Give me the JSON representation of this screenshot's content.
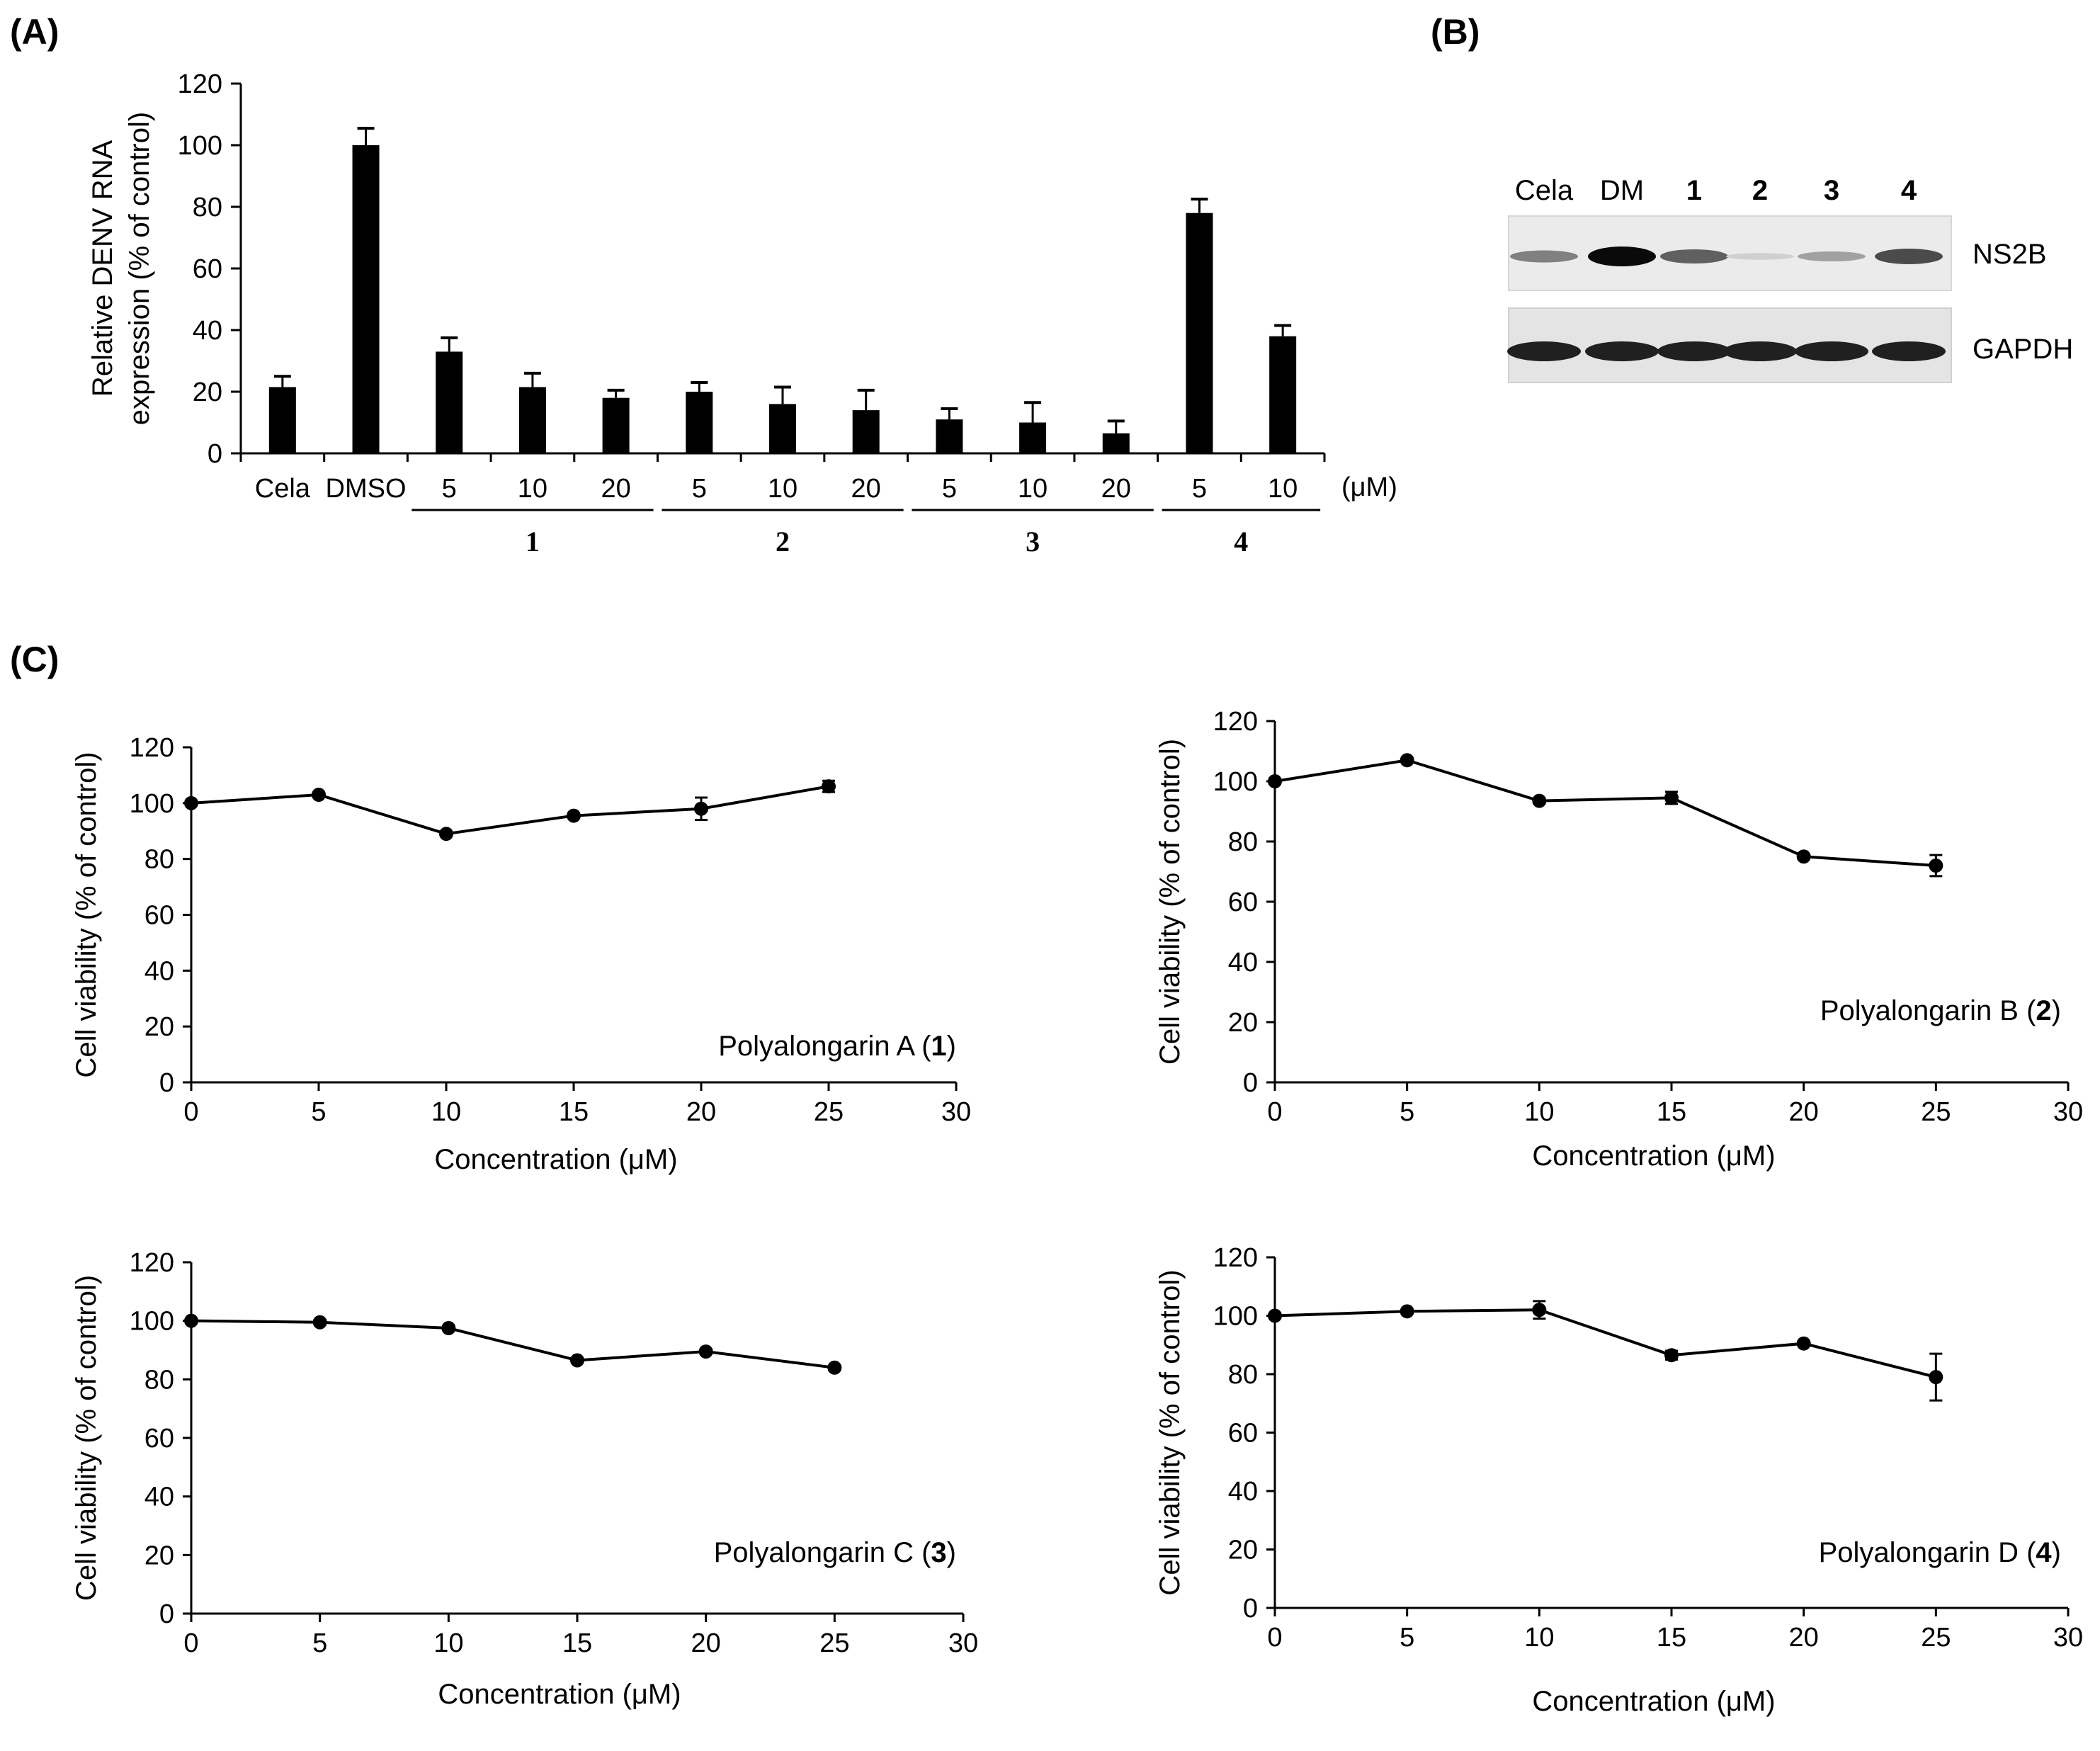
{
  "panels": {
    "A": "(A)",
    "B": "(B)",
    "C": "(C)"
  },
  "chart_data": [
    {
      "panel": "A",
      "type": "bar",
      "ylabel_line1": "Relative DENV RNA",
      "ylabel_line2": "expression (% of control)",
      "ylim": [
        0,
        120
      ],
      "yticks": [
        0,
        20,
        40,
        60,
        80,
        100,
        120
      ],
      "unit_label": "(μM)",
      "categories": [
        "Cela",
        "DMSO",
        "5",
        "10",
        "20",
        "5",
        "10",
        "20",
        "5",
        "10",
        "20",
        "5",
        "10"
      ],
      "values": [
        21.5,
        100,
        33,
        21.5,
        18,
        20,
        16,
        14,
        11,
        10,
        6.5,
        78,
        38
      ],
      "errors": [
        3.5,
        5.5,
        4.5,
        4.5,
        2.5,
        3,
        5.5,
        6.5,
        3.5,
        6.5,
        4,
        4.5,
        3.5
      ],
      "groups": [
        {
          "label": "1",
          "members": [
            2,
            3,
            4
          ]
        },
        {
          "label": "2",
          "members": [
            5,
            6,
            7
          ]
        },
        {
          "label": "3",
          "members": [
            8,
            9,
            10
          ]
        },
        {
          "label": "4",
          "members": [
            11,
            12
          ]
        }
      ],
      "bar_color": "#000000"
    },
    {
      "panel": "C1",
      "type": "line",
      "series_label": "Polyalongarin A (",
      "series_label_bold": "1",
      "series_label_end": ")",
      "xlabel": "Concentration (μM)",
      "ylabel": "Cell viability (% of control)",
      "xlim": [
        0,
        30
      ],
      "ylim": [
        0,
        120
      ],
      "xticks": [
        0,
        5,
        10,
        15,
        20,
        25,
        30
      ],
      "yticks": [
        0,
        20,
        40,
        60,
        80,
        100,
        120
      ],
      "x": [
        0,
        5,
        10,
        15,
        20,
        25
      ],
      "y": [
        100,
        103,
        89,
        95.5,
        98,
        106
      ],
      "err": [
        0.8,
        0.8,
        0.8,
        0.8,
        4,
        2
      ]
    },
    {
      "panel": "C2",
      "type": "line",
      "series_label": "Polyalongarin B (",
      "series_label_bold": "2",
      "series_label_end": ")",
      "xlabel": "Concentration (μM)",
      "ylabel": "Cell viability (% of control)",
      "xlim": [
        0,
        30
      ],
      "ylim": [
        0,
        120
      ],
      "xticks": [
        0,
        5,
        10,
        15,
        20,
        25,
        30
      ],
      "yticks": [
        0,
        20,
        40,
        60,
        80,
        100,
        120
      ],
      "x": [
        0,
        5,
        10,
        15,
        20,
        25
      ],
      "y": [
        100,
        107,
        93.5,
        94.5,
        75,
        72
      ],
      "err": [
        0.8,
        0.8,
        0.8,
        2,
        0.8,
        3.5
      ]
    },
    {
      "panel": "C3",
      "type": "line",
      "series_label": "Polyalongarin C (",
      "series_label_bold": "3",
      "series_label_end": ")",
      "xlabel": "Concentration (μM)",
      "ylabel": "Cell viability (% of control)",
      "xlim": [
        0,
        30
      ],
      "ylim": [
        0,
        120
      ],
      "xticks": [
        0,
        5,
        10,
        15,
        20,
        25,
        30
      ],
      "yticks": [
        0,
        20,
        40,
        60,
        80,
        100,
        120
      ],
      "x": [
        0,
        5,
        10,
        15,
        20,
        25
      ],
      "y": [
        100,
        99.5,
        97.5,
        86.5,
        89.5,
        84
      ],
      "err": [
        0.8,
        0.8,
        0.8,
        0.8,
        0.8,
        0.8
      ]
    },
    {
      "panel": "C4",
      "type": "line",
      "series_label": "Polyalongarin D (",
      "series_label_bold": "4",
      "series_label_end": ")",
      "xlabel": "Concentration (μM)",
      "ylabel": "Cell viability (% of control)",
      "xlim": [
        0,
        30
      ],
      "ylim": [
        0,
        120
      ],
      "xticks": [
        0,
        5,
        10,
        15,
        20,
        25,
        30
      ],
      "yticks": [
        0,
        20,
        40,
        60,
        80,
        100,
        120
      ],
      "x": [
        0,
        5,
        10,
        15,
        20,
        25
      ],
      "y": [
        100,
        101.5,
        102,
        86.5,
        90.5,
        79
      ],
      "err": [
        0.8,
        0.8,
        3,
        1.5,
        0.8,
        8
      ]
    }
  ],
  "blot": {
    "lanes": [
      "Cela",
      "DM",
      "1",
      "2",
      "3",
      "4"
    ],
    "rows": [
      "NS2B",
      "GAPDH"
    ],
    "ns2b_intensity": [
      0.45,
      1.0,
      0.6,
      0.08,
      0.3,
      0.7
    ],
    "gapdh_intensity": [
      0.9,
      0.9,
      0.9,
      0.9,
      0.9,
      0.9
    ]
  }
}
